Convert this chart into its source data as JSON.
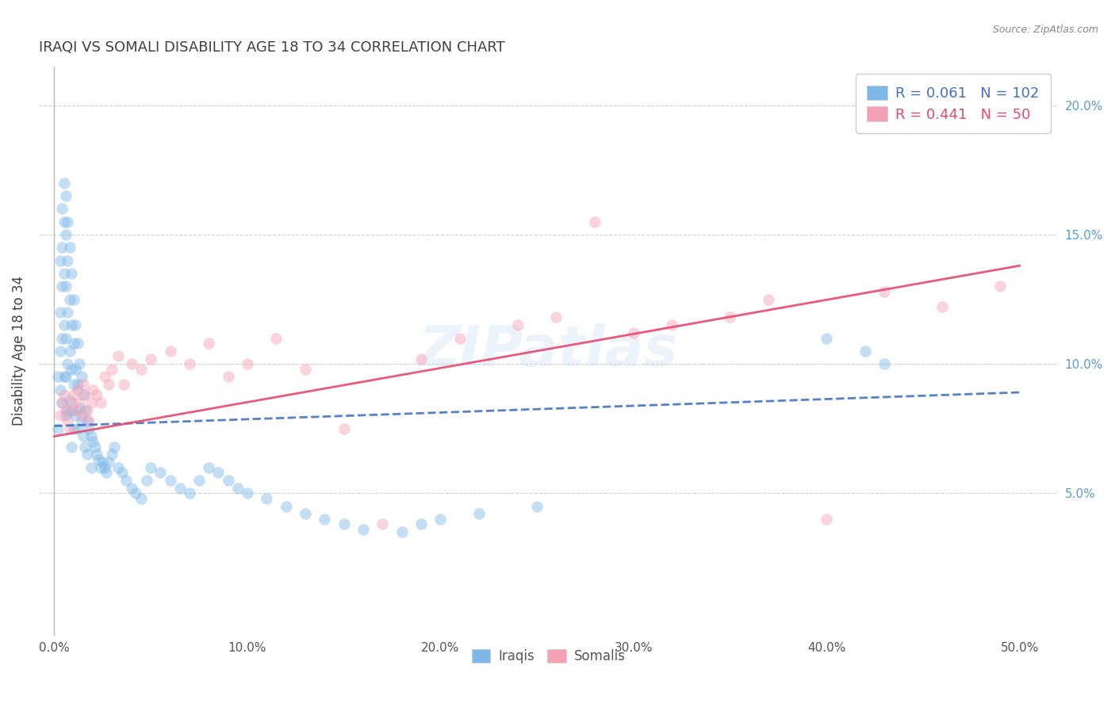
{
  "title": "IRAQI VS SOMALI DISABILITY AGE 18 TO 34 CORRELATION CHART",
  "source": "Source: ZipAtlas.com",
  "ylabel": "Disability Age 18 to 34",
  "xlim": [
    -0.008,
    0.52
  ],
  "ylim": [
    -0.005,
    0.215
  ],
  "xtick_vals": [
    0.0,
    0.1,
    0.2,
    0.3,
    0.4,
    0.5
  ],
  "xtick_labels": [
    "0.0%",
    "10.0%",
    "20.0%",
    "30.0%",
    "40.0%",
    "50.0%"
  ],
  "ytick_vals": [
    0.05,
    0.1,
    0.15,
    0.2
  ],
  "ytick_labels": [
    "5.0%",
    "10.0%",
    "15.0%",
    "20.0%"
  ],
  "iraqi_R": 0.061,
  "iraqi_N": 102,
  "somali_R": 0.441,
  "somali_N": 50,
  "iraqi_color": "#7db8e8",
  "somali_color": "#f4a0b5",
  "iraqi_line_color": "#4472c4",
  "somali_line_color": "#e8496d",
  "watermark": "ZIPatlas",
  "background_color": "#ffffff",
  "grid_color": "#cccccc",
  "title_color": "#404040",
  "source_color": "#888888",
  "ylabel_color": "#404040",
  "right_tick_color": "#5b9bd5",
  "bottom_legend_color": "#555555",
  "iraqi_line_x": [
    0.0,
    0.5
  ],
  "iraqi_line_y": [
    0.076,
    0.089
  ],
  "somali_line_x": [
    0.0,
    0.5
  ],
  "somali_line_y": [
    0.072,
    0.138
  ],
  "iraqi_x": [
    0.002,
    0.002,
    0.003,
    0.003,
    0.003,
    0.003,
    0.004,
    0.004,
    0.004,
    0.004,
    0.004,
    0.005,
    0.005,
    0.005,
    0.005,
    0.005,
    0.006,
    0.006,
    0.006,
    0.006,
    0.006,
    0.006,
    0.007,
    0.007,
    0.007,
    0.007,
    0.007,
    0.008,
    0.008,
    0.008,
    0.008,
    0.009,
    0.009,
    0.009,
    0.009,
    0.009,
    0.01,
    0.01,
    0.01,
    0.01,
    0.011,
    0.011,
    0.011,
    0.012,
    0.012,
    0.012,
    0.013,
    0.013,
    0.014,
    0.014,
    0.015,
    0.015,
    0.016,
    0.016,
    0.017,
    0.017,
    0.018,
    0.019,
    0.019,
    0.02,
    0.021,
    0.022,
    0.023,
    0.024,
    0.025,
    0.026,
    0.027,
    0.028,
    0.03,
    0.031,
    0.033,
    0.035,
    0.037,
    0.04,
    0.042,
    0.045,
    0.048,
    0.05,
    0.055,
    0.06,
    0.065,
    0.07,
    0.075,
    0.08,
    0.085,
    0.09,
    0.095,
    0.1,
    0.11,
    0.12,
    0.13,
    0.14,
    0.15,
    0.16,
    0.18,
    0.19,
    0.2,
    0.22,
    0.25,
    0.4,
    0.42,
    0.43
  ],
  "iraqi_y": [
    0.095,
    0.075,
    0.14,
    0.12,
    0.105,
    0.09,
    0.16,
    0.145,
    0.13,
    0.11,
    0.085,
    0.17,
    0.155,
    0.135,
    0.115,
    0.095,
    0.165,
    0.15,
    0.13,
    0.11,
    0.095,
    0.08,
    0.155,
    0.14,
    0.12,
    0.1,
    0.082,
    0.145,
    0.125,
    0.105,
    0.086,
    0.135,
    0.115,
    0.098,
    0.082,
    0.068,
    0.125,
    0.108,
    0.092,
    0.075,
    0.115,
    0.098,
    0.08,
    0.108,
    0.092,
    0.075,
    0.1,
    0.083,
    0.095,
    0.078,
    0.088,
    0.072,
    0.082,
    0.068,
    0.078,
    0.065,
    0.075,
    0.072,
    0.06,
    0.07,
    0.068,
    0.065,
    0.063,
    0.06,
    0.062,
    0.06,
    0.058,
    0.062,
    0.065,
    0.068,
    0.06,
    0.058,
    0.055,
    0.052,
    0.05,
    0.048,
    0.055,
    0.06,
    0.058,
    0.055,
    0.052,
    0.05,
    0.055,
    0.06,
    0.058,
    0.055,
    0.052,
    0.05,
    0.048,
    0.045,
    0.042,
    0.04,
    0.038,
    0.036,
    0.035,
    0.038,
    0.04,
    0.042,
    0.045,
    0.11,
    0.105,
    0.1
  ],
  "somali_x": [
    0.003,
    0.004,
    0.005,
    0.006,
    0.007,
    0.008,
    0.009,
    0.01,
    0.011,
    0.012,
    0.013,
    0.014,
    0.015,
    0.016,
    0.017,
    0.018,
    0.019,
    0.02,
    0.022,
    0.024,
    0.026,
    0.028,
    0.03,
    0.033,
    0.036,
    0.04,
    0.045,
    0.05,
    0.06,
    0.07,
    0.08,
    0.09,
    0.1,
    0.115,
    0.13,
    0.15,
    0.17,
    0.19,
    0.21,
    0.24,
    0.26,
    0.28,
    0.3,
    0.32,
    0.35,
    0.37,
    0.4,
    0.43,
    0.46,
    0.49
  ],
  "somali_y": [
    0.08,
    0.085,
    0.088,
    0.082,
    0.078,
    0.075,
    0.085,
    0.088,
    0.082,
    0.09,
    0.085,
    0.08,
    0.092,
    0.088,
    0.082,
    0.078,
    0.085,
    0.09,
    0.088,
    0.085,
    0.095,
    0.092,
    0.098,
    0.103,
    0.092,
    0.1,
    0.098,
    0.102,
    0.105,
    0.1,
    0.108,
    0.095,
    0.1,
    0.11,
    0.098,
    0.075,
    0.038,
    0.102,
    0.11,
    0.115,
    0.118,
    0.155,
    0.112,
    0.115,
    0.118,
    0.125,
    0.04,
    0.128,
    0.122,
    0.13
  ]
}
